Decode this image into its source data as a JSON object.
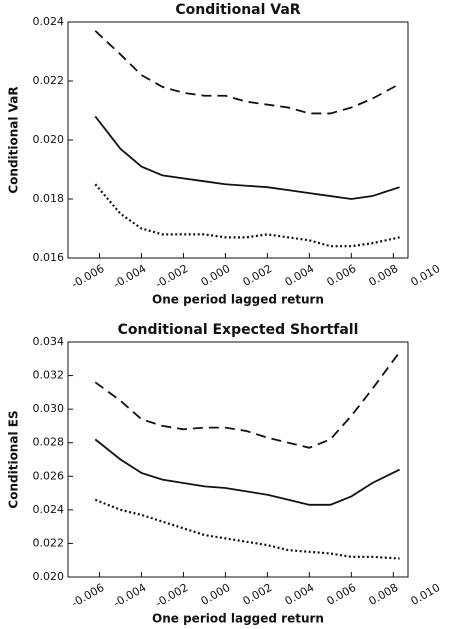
{
  "chart_data": [
    {
      "type": "line",
      "title": "Conditional VaR",
      "xlabel": "One period lagged return",
      "ylabel": "Conditional VaR",
      "x": [
        -0.0062,
        -0.005,
        -0.004,
        -0.003,
        -0.002,
        -0.001,
        0,
        0.001,
        0.002,
        0.003,
        0.004,
        0.005,
        0.006,
        0.007,
        0.0083
      ],
      "series": [
        {
          "color": "#111111",
          "style": "solid",
          "values": [
            0.0208,
            0.0197,
            0.0191,
            0.0188,
            0.0187,
            0.0186,
            0.0185,
            0.01845,
            0.0184,
            0.0183,
            0.0182,
            0.0181,
            0.018,
            0.0181,
            0.0184
          ]
        },
        {
          "color": "#111111",
          "style": "dashed",
          "values": [
            0.0237,
            0.0229,
            0.0222,
            0.0218,
            0.0216,
            0.0215,
            0.0215,
            0.0213,
            0.0212,
            0.0211,
            0.0209,
            0.0209,
            0.0211,
            0.0214,
            0.0219
          ]
        },
        {
          "color": "#111111",
          "style": "dotted",
          "values": [
            0.0185,
            0.0175,
            0.017,
            0.0168,
            0.0168,
            0.0168,
            0.0167,
            0.0167,
            0.0168,
            0.0167,
            0.0166,
            0.0164,
            0.0164,
            0.0165,
            0.0167
          ]
        }
      ],
      "xlim": [
        -0.0075,
        0.0087
      ],
      "xticks": [
        -0.006,
        -0.004,
        -0.002,
        {
          "value": 0,
          "label": "0.000"
        },
        0.002,
        0.004,
        0.006,
        0.008,
        {
          "value": 0.01,
          "label": "0.010"
        }
      ],
      "ylim": [
        0.016,
        0.024
      ],
      "yticks": [
        0.016,
        0.018,
        {
          "value": 0.02,
          "label": "0.020"
        },
        0.022,
        0.024
      ]
    },
    {
      "type": "line",
      "title": "Conditional Expected Shortfall",
      "xlabel": "One period lagged return",
      "ylabel": "Conditional ES",
      "x": [
        -0.0062,
        -0.005,
        -0.004,
        -0.003,
        -0.002,
        -0.001,
        0,
        0.001,
        0.002,
        0.003,
        0.004,
        0.005,
        0.006,
        0.007,
        0.0083
      ],
      "series": [
        {
          "color": "#111111",
          "style": "solid",
          "values": [
            0.0282,
            0.027,
            0.0262,
            0.0258,
            0.0256,
            0.0254,
            0.0253,
            0.0251,
            0.0249,
            0.0246,
            0.0243,
            0.0243,
            0.0248,
            0.0256,
            0.0264
          ]
        },
        {
          "color": "#111111",
          "style": "dashed",
          "values": [
            0.0316,
            0.0305,
            0.0294,
            0.029,
            0.0288,
            0.0289,
            0.0289,
            0.0287,
            0.0283,
            0.028,
            0.0277,
            0.0282,
            0.0296,
            0.0312,
            0.0334
          ]
        },
        {
          "color": "#111111",
          "style": "dotted",
          "values": [
            0.0246,
            0.024,
            0.0237,
            0.0233,
            0.0229,
            0.0225,
            0.0223,
            0.0221,
            0.0219,
            0.0216,
            0.0215,
            0.0214,
            0.0212,
            0.0212,
            0.0211
          ]
        }
      ],
      "xlim": [
        -0.0075,
        0.0087
      ],
      "xticks": [
        -0.006,
        -0.004,
        -0.002,
        {
          "value": 0,
          "label": "0.000"
        },
        0.002,
        0.004,
        0.006,
        0.008,
        {
          "value": 0.01,
          "label": "0.010"
        }
      ],
      "ylim": [
        0.02,
        0.034
      ],
      "yticks": [
        {
          "value": 0.02,
          "label": "0.020"
        },
        0.022,
        0.024,
        0.026,
        0.028,
        {
          "value": 0.03,
          "label": "0.030"
        },
        0.032,
        0.034
      ]
    }
  ]
}
